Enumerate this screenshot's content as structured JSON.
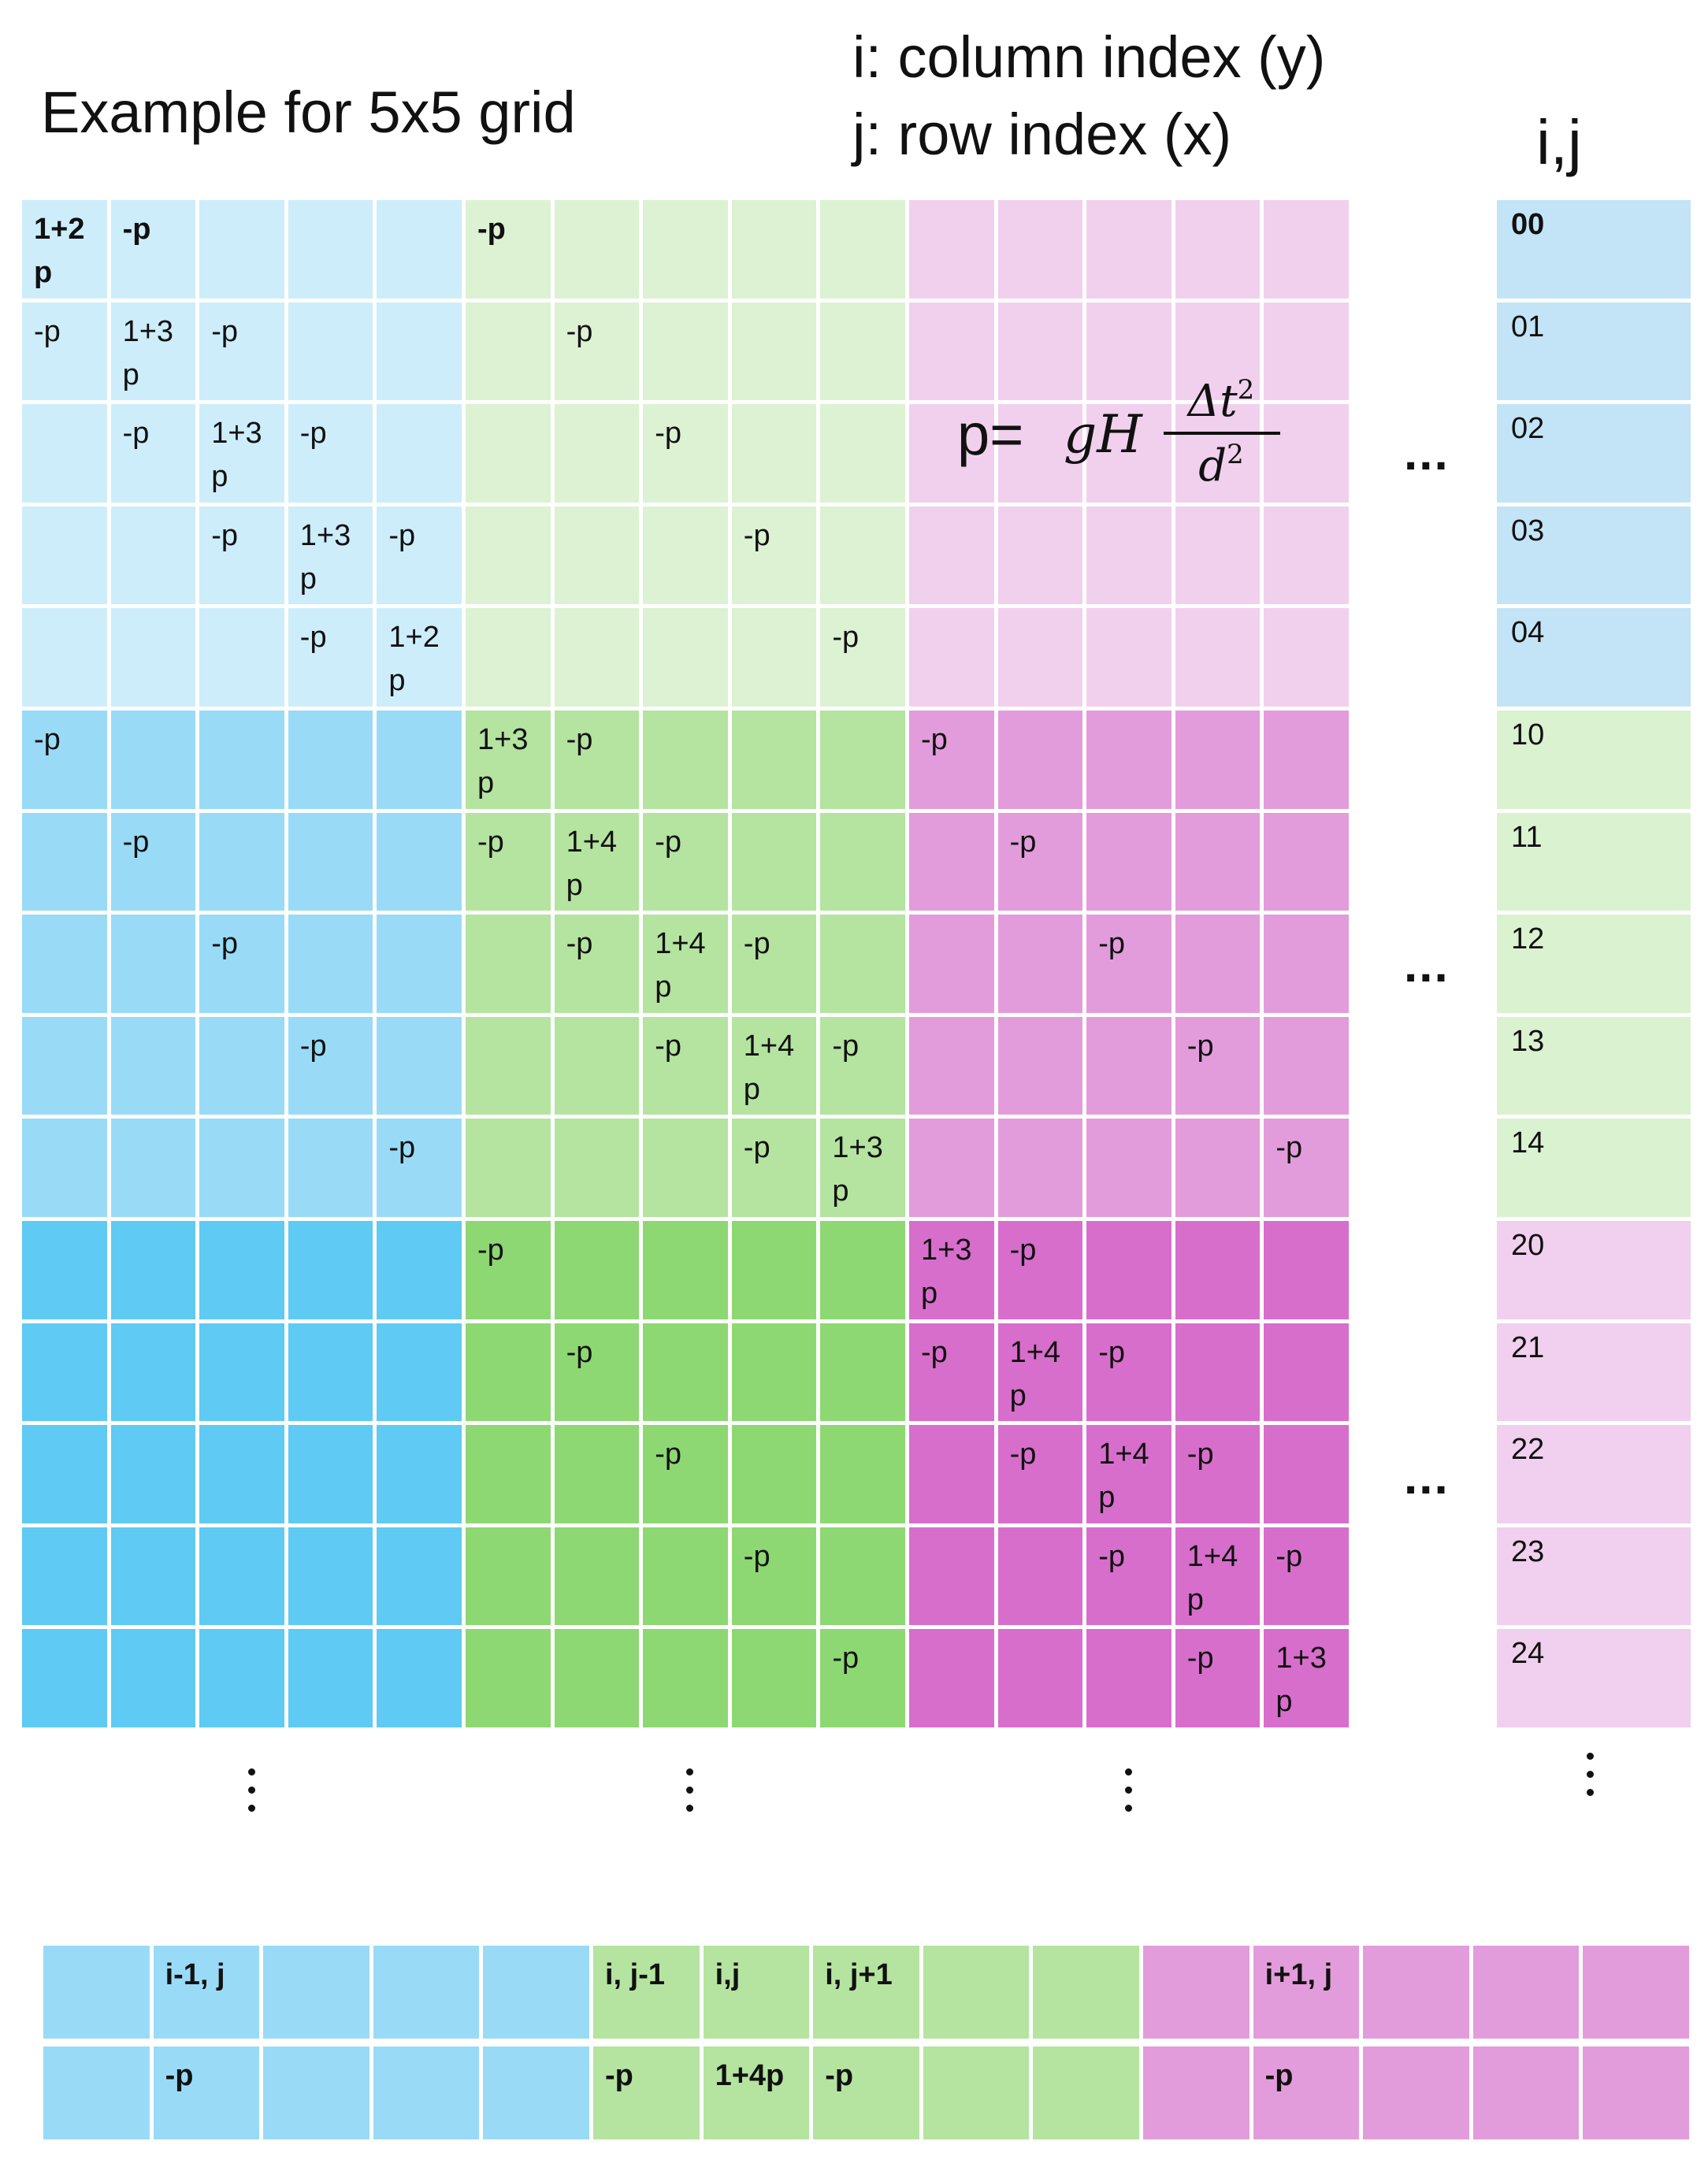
{
  "title": "Example for 5x5 grid",
  "legend": {
    "line1": "i: column index (y)",
    "line2": "j: row index (x)"
  },
  "index_header": "i,j",
  "formula": {
    "lhs": "p=",
    "factor": "gH",
    "numerator": "Δt",
    "denominator": "d",
    "exponent": "2"
  },
  "colors": {
    "blue": [
      "#cdedfb",
      "#99dbf7",
      "#5fcaf3"
    ],
    "green": [
      "#dcf2d2",
      "#b4e4a0",
      "#8dd872"
    ],
    "pink": [
      "#f1d0ee",
      "#e39cdb",
      "#d86ecc"
    ],
    "index_blue": "#c3e4f6",
    "index_green": "#daf2d0",
    "index_pink": "#f1cfee"
  },
  "matrix_rows": [
    [
      "1+2 p",
      "-p",
      "",
      "",
      "",
      "-p",
      "",
      "",
      "",
      "",
      "",
      "",
      "",
      "",
      ""
    ],
    [
      "-p",
      "1+3 p",
      "-p",
      "",
      "",
      "",
      "-p",
      "",
      "",
      "",
      "",
      "",
      "",
      "",
      ""
    ],
    [
      "",
      "-p",
      "1+3 p",
      "-p",
      "",
      "",
      "",
      "-p",
      "",
      "",
      "",
      "",
      "",
      "",
      ""
    ],
    [
      "",
      "",
      "-p",
      "1+3 p",
      "-p",
      "",
      "",
      "",
      "-p",
      "",
      "",
      "",
      "",
      "",
      ""
    ],
    [
      "",
      "",
      "",
      "-p",
      "1+2 p",
      "",
      "",
      "",
      "",
      "-p",
      "",
      "",
      "",
      "",
      ""
    ],
    [
      "-p",
      "",
      "",
      "",
      "",
      "1+3 p",
      "-p",
      "",
      "",
      "",
      "-p",
      "",
      "",
      "",
      ""
    ],
    [
      "",
      "-p",
      "",
      "",
      "",
      "-p",
      "1+4 p",
      "-p",
      "",
      "",
      "",
      "-p",
      "",
      "",
      ""
    ],
    [
      "",
      "",
      "-p",
      "",
      "",
      "",
      "-p",
      "1+4 p",
      "-p",
      "",
      "",
      "",
      "-p",
      "",
      ""
    ],
    [
      "",
      "",
      "",
      "-p",
      "",
      "",
      "",
      "-p",
      "1+4 p",
      "-p",
      "",
      "",
      "",
      "-p",
      ""
    ],
    [
      "",
      "",
      "",
      "",
      "-p",
      "",
      "",
      "",
      "-p",
      "1+3 p",
      "",
      "",
      "",
      "",
      "-p"
    ],
    [
      "",
      "",
      "",
      "",
      "",
      "-p",
      "",
      "",
      "",
      "",
      "1+3 p",
      "-p",
      "",
      "",
      ""
    ],
    [
      "",
      "",
      "",
      "",
      "",
      "",
      "-p",
      "",
      "",
      "",
      "-p",
      "1+4 p",
      "-p",
      "",
      ""
    ],
    [
      "",
      "",
      "",
      "",
      "",
      "",
      "",
      "-p",
      "",
      "",
      "",
      "-p",
      "1+4 p",
      "-p",
      ""
    ],
    [
      "",
      "",
      "",
      "",
      "",
      "",
      "",
      "",
      "-p",
      "",
      "",
      "",
      "-p",
      "1+4 p",
      "-p"
    ],
    [
      "",
      "",
      "",
      "",
      "",
      "",
      "",
      "",
      "",
      "-p",
      "",
      "",
      "",
      "-p",
      "1+3 p"
    ]
  ],
  "index_labels": [
    "00",
    "01",
    "02",
    "03",
    "04",
    "10",
    "11",
    "12",
    "13",
    "14",
    "20",
    "21",
    "22",
    "23",
    "24"
  ],
  "ellipsis": "...",
  "stencil": {
    "headers": [
      "",
      "i-1, j",
      "",
      "",
      "",
      "i, j-1",
      "i,j",
      "i, j+1",
      "",
      "",
      "",
      "i+1, j",
      "",
      "",
      ""
    ],
    "values": [
      "",
      "-p",
      "",
      "",
      "",
      "-p",
      "1+4p",
      "-p",
      "",
      "",
      "",
      "-p",
      "",
      "",
      ""
    ]
  }
}
